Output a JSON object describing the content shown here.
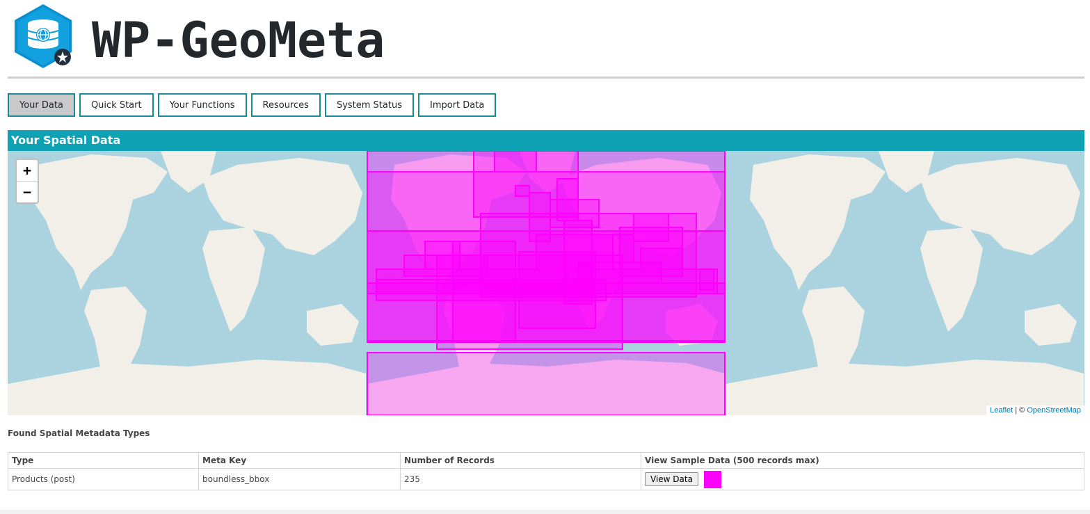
{
  "app": {
    "title": "WP-GeoMeta"
  },
  "tabs": [
    {
      "label": "Your Data",
      "active": true
    },
    {
      "label": "Quick Start"
    },
    {
      "label": "Your Functions"
    },
    {
      "label": "Resources"
    },
    {
      "label": "System Status"
    },
    {
      "label": "Import Data"
    }
  ],
  "panel": {
    "title": "Your Spatial Data"
  },
  "map": {
    "zoom_in": "+",
    "zoom_out": "−",
    "attribution_leaflet": "Leaflet",
    "attribution_sep": " | © ",
    "attribution_osm": "OpenStreetMap",
    "overlay_color": "#ff00ff"
  },
  "found": {
    "heading": "Found Spatial Metadata Types"
  },
  "table": {
    "headers": [
      "Type",
      "Meta Key",
      "Number of Records",
      "View Sample Data (500 records max)"
    ],
    "rows": [
      {
        "type": "Products (post)",
        "meta_key": "boundless_bbox",
        "records": "235",
        "button": "View Data",
        "color": "#ff00ff"
      }
    ]
  },
  "colors": {
    "accent": "#0fa2b4",
    "tab_border": "#1a8a98",
    "water": "#aad3df",
    "land": "#f2efe9"
  }
}
